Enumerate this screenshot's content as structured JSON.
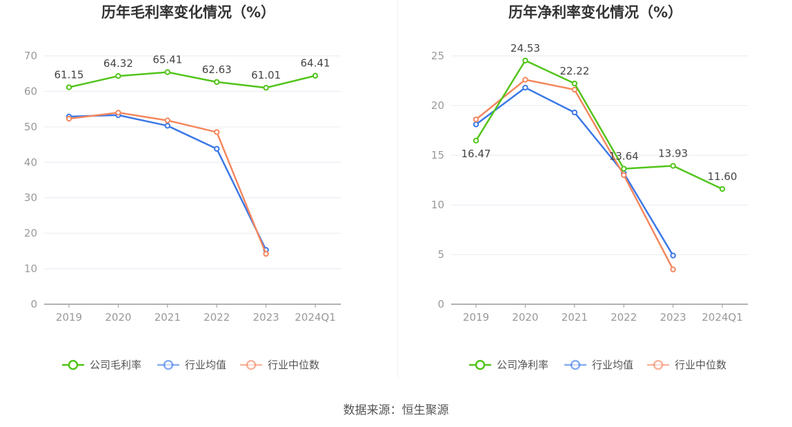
{
  "chart_data": [
    {
      "type": "line",
      "title": "历年毛利率变化情况（%）",
      "categories": [
        "2019",
        "2020",
        "2021",
        "2022",
        "2023",
        "2024Q1"
      ],
      "ylim": [
        0,
        70
      ],
      "yticks": [
        0,
        10,
        20,
        30,
        40,
        50,
        60,
        70
      ],
      "grid": true,
      "legend_position": "bottom",
      "series": [
        {
          "name": "公司毛利率",
          "color": "#52c41a",
          "values": [
            61.15,
            64.32,
            65.41,
            62.63,
            61.01,
            64.41
          ],
          "labels": [
            "61.15",
            "64.32",
            "65.41",
            "62.63",
            "61.01",
            "64.41"
          ]
        },
        {
          "name": "行业均值",
          "color": "#3b78e7",
          "values": [
            52.9,
            53.3,
            50.3,
            43.8,
            15.3,
            null
          ]
        },
        {
          "name": "行业中位数",
          "color": "#f4875e",
          "values": [
            52.3,
            54.0,
            51.8,
            48.5,
            14.2,
            null
          ]
        }
      ]
    },
    {
      "type": "line",
      "title": "历年净利率变化情况（%）",
      "categories": [
        "2019",
        "2020",
        "2021",
        "2022",
        "2023",
        "2024Q1"
      ],
      "ylim": [
        0,
        25
      ],
      "yticks": [
        0,
        5,
        10,
        15,
        20,
        25
      ],
      "grid": true,
      "legend_position": "bottom",
      "series": [
        {
          "name": "公司净利率",
          "color": "#52c41a",
          "values": [
            16.47,
            24.53,
            22.22,
            13.64,
            13.93,
            11.6
          ],
          "labels": [
            "16.47",
            "24.53",
            "22.22",
            "13.64",
            "13.93",
            "11.60"
          ]
        },
        {
          "name": "行业均值",
          "color": "#3b78e7",
          "values": [
            18.1,
            21.8,
            19.3,
            13.2,
            4.9,
            null
          ]
        },
        {
          "name": "行业中位数",
          "color": "#f4875e",
          "values": [
            18.6,
            22.6,
            21.6,
            13.0,
            3.5,
            null
          ]
        }
      ]
    }
  ],
  "footer": {
    "source": "数据来源：恒生聚源"
  }
}
